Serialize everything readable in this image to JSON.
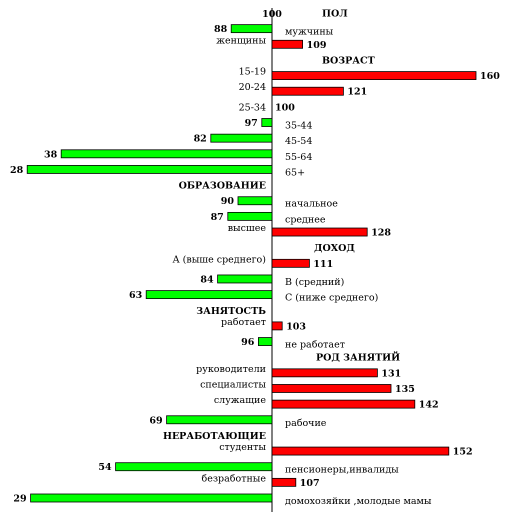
{
  "chart_data": {
    "type": "bar",
    "orientation": "horizontal",
    "baseline": 100,
    "baseline_label": "100",
    "colors": {
      "above": "#ff0000",
      "below": "#00ff00",
      "outline": "#000000"
    },
    "rows": [
      {
        "kind": "section",
        "label": "ПОЛ"
      },
      {
        "kind": "bar",
        "label": "мужчины",
        "value": 88
      },
      {
        "kind": "bar",
        "label": "женщины",
        "value": 109
      },
      {
        "kind": "section",
        "label": "ВОЗРАСТ"
      },
      {
        "kind": "bar",
        "label": "15-19",
        "value": 160
      },
      {
        "kind": "bar",
        "label": "20-24",
        "value": 121
      },
      {
        "kind": "bar",
        "label": "25-34",
        "value": 100
      },
      {
        "kind": "bar",
        "label": "35-44",
        "value": 97
      },
      {
        "kind": "bar",
        "label": "45-54",
        "value": 82
      },
      {
        "kind": "bar",
        "label": "55-64",
        "value": 38
      },
      {
        "kind": "bar",
        "label": "65+",
        "value": 28
      },
      {
        "kind": "section",
        "label": "ОБРАЗОВАНИЕ"
      },
      {
        "kind": "bar",
        "label": "начальное",
        "value": 90
      },
      {
        "kind": "bar",
        "label": "среднее",
        "value": 87
      },
      {
        "kind": "bar",
        "label": "высшее",
        "value": 128
      },
      {
        "kind": "section",
        "label": "ДОХОД"
      },
      {
        "kind": "bar",
        "label": "А (выше среднего)",
        "value": 111
      },
      {
        "kind": "bar",
        "label": "В (средний)",
        "value": 84
      },
      {
        "kind": "bar",
        "label": "С (ниже среднего)",
        "value": 63
      },
      {
        "kind": "section",
        "label": "ЗАНЯТОСТЬ"
      },
      {
        "kind": "bar",
        "label": "работает",
        "value": 103
      },
      {
        "kind": "bar",
        "label": "не работает",
        "value": 96
      },
      {
        "kind": "section",
        "label": "РОД ЗАНЯТИЙ"
      },
      {
        "kind": "bar",
        "label": "руководители",
        "value": 131
      },
      {
        "kind": "bar",
        "label": "специалисты",
        "value": 135
      },
      {
        "kind": "bar",
        "label": "служащие",
        "value": 142
      },
      {
        "kind": "bar",
        "label": "рабочие",
        "value": 69
      },
      {
        "kind": "section",
        "label": "НЕРАБОТАЮЩИЕ"
      },
      {
        "kind": "bar",
        "label": "студенты",
        "value": 152
      },
      {
        "kind": "bar",
        "label": "пенсионеры,инвалиды",
        "value": 54
      },
      {
        "kind": "bar",
        "label": "безработные",
        "value": 107
      },
      {
        "kind": "bar",
        "label": "домохозяйки ,молодые мамы",
        "value": 29
      }
    ]
  }
}
